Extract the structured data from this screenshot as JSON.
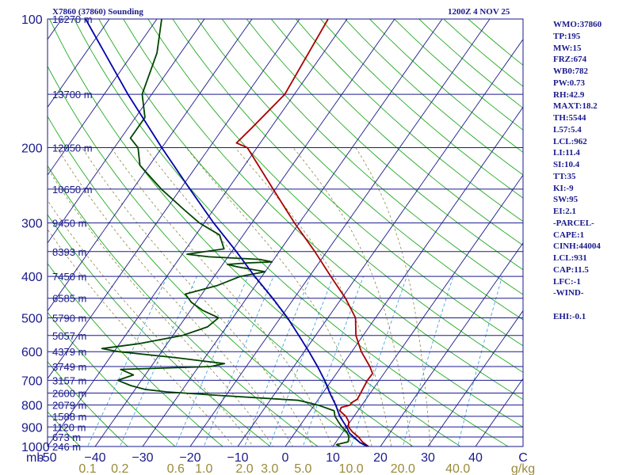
{
  "header": {
    "station_title": "X7860 (37860) Sounding",
    "valid_time": "1200Z  4 NOV 25"
  },
  "stats": [
    "WMO:37860",
    "TP:195",
    "MW:15",
    "FRZ:674",
    "WB0:782",
    "PW:0.73",
    "RH:42.9",
    "MAXT:18.2",
    "TH:5544",
    "L57:5.4",
    "LCL:962",
    "LI:11.4",
    "SI:10.4",
    "TT:35",
    "KI:-9",
    "SW:95",
    "EI:2.1",
    "-PARCEL-",
    "CAPE:1",
    "CINH:44004",
    "LCL:931",
    "CAP:11.5",
    "LFC:-1",
    "-WIND-",
    "",
    "EHI:-0.1"
  ],
  "colors": {
    "background": "#ffffff",
    "isobar": "#1a1a8c",
    "isotherm": "#1a1a8c",
    "dry_adiabat": "#22aa22",
    "moist_adiabat": "#8a8a4a",
    "mixing_ratio": "#3399dd",
    "temperature": "#aa0000",
    "dewpoint": "#004400",
    "parcel": "#0000aa",
    "label": "#1a1a8c",
    "mixing_label": "#9a8a3a"
  },
  "chart_data": {
    "type": "line",
    "title": "",
    "xlabel": "",
    "ylabel": "mb",
    "xlim": [
      -50,
      50
    ],
    "ylim": [
      1000,
      100
    ],
    "y_scale": "log",
    "pressure_labels": [
      "100",
      "200",
      "300",
      "400",
      "500",
      "600",
      "700",
      "800",
      "900",
      "1000"
    ],
    "pressure_ticks": [
      100,
      200,
      300,
      400,
      500,
      600,
      700,
      800,
      900,
      1000
    ],
    "temperature_ticks": [
      -50,
      -40,
      -30,
      -20,
      -10,
      0,
      10,
      20,
      30,
      40,
      50
    ],
    "temperature_tick_labels": [
      "-50",
      "−40",
      "−30",
      "−20",
      "−10",
      "0",
      "10",
      "20",
      "30",
      "40",
      "C"
    ],
    "axis_unit_label": "mb",
    "mixing_ratio_labels": [
      "0.1",
      "0.2",
      "0.6",
      "1.0",
      "2.0",
      "3.0",
      "5.0",
      "10.0",
      "20.0",
      "40.0",
      "g/kg"
    ],
    "mixing_ratio_values": [
      0.1,
      0.2,
      0.6,
      1.0,
      2.0,
      3.0,
      5.0,
      10.0,
      20.0,
      40.0
    ],
    "height_labels": [
      {
        "p": 100,
        "text": "16270 m"
      },
      {
        "p": 150,
        "text": "13700 m"
      },
      {
        "p": 200,
        "text": "12050 m"
      },
      {
        "p": 250,
        "text": "10650 m"
      },
      {
        "p": 300,
        "text": "9450 m"
      },
      {
        "p": 350,
        "text": "8393 m"
      },
      {
        "p": 400,
        "text": "7450 m"
      },
      {
        "p": 450,
        "text": "6585 m"
      },
      {
        "p": 500,
        "text": "5790 m"
      },
      {
        "p": 550,
        "text": "5057 m"
      },
      {
        "p": 600,
        "text": "4379 m"
      },
      {
        "p": 650,
        "text": "3749 m"
      },
      {
        "p": 700,
        "text": "3157 m"
      },
      {
        "p": 750,
        "text": "2600 m"
      },
      {
        "p": 800,
        "text": "2079 m"
      },
      {
        "p": 850,
        "text": "1588 m"
      },
      {
        "p": 900,
        "text": "1120 m"
      },
      {
        "p": 950,
        "text": "673 m"
      },
      {
        "p": 1000,
        "text": "246 m"
      }
    ],
    "series": [
      {
        "name": "temperature",
        "points": [
          [
            1013,
            17.5
          ],
          [
            1000,
            17.5
          ],
          [
            975,
            15.5
          ],
          [
            950,
            14.0
          ],
          [
            925,
            12.0
          ],
          [
            900,
            10.4
          ],
          [
            875,
            9.7
          ],
          [
            850,
            8.3
          ],
          [
            825,
            6.2
          ],
          [
            810,
            6.0
          ],
          [
            800,
            7.5
          ],
          [
            790,
            7.5
          ],
          [
            775,
            8.2
          ],
          [
            700,
            7.5
          ],
          [
            675,
            7.6
          ],
          [
            650,
            6.0
          ],
          [
            600,
            2.0
          ],
          [
            550,
            -1.5
          ],
          [
            500,
            -4.2
          ],
          [
            450,
            -9.2
          ],
          [
            400,
            -15.5
          ],
          [
            350,
            -22.5
          ],
          [
            300,
            -31.0
          ],
          [
            250,
            -40.5
          ],
          [
            200,
            -52.0
          ],
          [
            195,
            -55.0
          ],
          [
            180,
            -54.0
          ],
          [
            150,
            -52.0
          ],
          [
            100,
            -54.0
          ]
        ]
      },
      {
        "name": "dewpoint",
        "points": [
          [
            1013,
            12.0
          ],
          [
            1000,
            11.6
          ],
          [
            990,
            10.5
          ],
          [
            975,
            12.5
          ],
          [
            950,
            12.0
          ],
          [
            925,
            10.8
          ],
          [
            900,
            9.0
          ],
          [
            875,
            7.5
          ],
          [
            850,
            6.0
          ],
          [
            825,
            5.0
          ],
          [
            800,
            0.8
          ],
          [
            780,
            -4.0
          ],
          [
            760,
            -21.0
          ],
          [
            745,
            -33.0
          ],
          [
            735,
            -38.0
          ],
          [
            720,
            -41.5
          ],
          [
            700,
            -45.0
          ],
          [
            680,
            -42.5
          ],
          [
            660,
            -46.0
          ],
          [
            650,
            -27.5
          ],
          [
            640,
            -25.0
          ],
          [
            620,
            -36.0
          ],
          [
            600,
            -49.0
          ],
          [
            590,
            -53.0
          ],
          [
            575,
            -46.0
          ],
          [
            550,
            -38.0
          ],
          [
            525,
            -34.0
          ],
          [
            500,
            -33.0
          ],
          [
            480,
            -37.5
          ],
          [
            460,
            -41.0
          ],
          [
            440,
            -43.5
          ],
          [
            420,
            -38.0
          ],
          [
            400,
            -34.5
          ],
          [
            390,
            -30.0
          ],
          [
            380,
            -36.5
          ],
          [
            375,
            -39.0
          ],
          [
            372,
            -35.0
          ],
          [
            370,
            -30.0
          ],
          [
            365,
            -33.0
          ],
          [
            360,
            -44.0
          ],
          [
            355,
            -49.0
          ],
          [
            345,
            -42.0
          ],
          [
            320,
            -45.0
          ],
          [
            300,
            -51.0
          ],
          [
            280,
            -56.0
          ],
          [
            250,
            -64.0
          ],
          [
            220,
            -72.0
          ],
          [
            200,
            -75.0
          ],
          [
            190,
            -78.0
          ],
          [
            170,
            -78.0
          ],
          [
            150,
            -82.0
          ],
          [
            120,
            -85.0
          ],
          [
            100,
            -89.0
          ]
        ]
      },
      {
        "name": "parcel",
        "points": [
          [
            1000,
            17.5
          ],
          [
            980,
            15.2
          ],
          [
            950,
            13.0
          ],
          [
            930,
            11.5
          ],
          [
            900,
            10.0
          ],
          [
            850,
            7.0
          ],
          [
            800,
            4.5
          ],
          [
            750,
            1.5
          ],
          [
            700,
            -1.5
          ],
          [
            650,
            -5.0
          ],
          [
            600,
            -9.0
          ],
          [
            550,
            -13.5
          ],
          [
            500,
            -18.5
          ],
          [
            450,
            -24.5
          ],
          [
            400,
            -31.5
          ],
          [
            350,
            -39.0
          ],
          [
            300,
            -48.0
          ],
          [
            250,
            -58.0
          ],
          [
            200,
            -70.0
          ],
          [
            150,
            -85.0
          ],
          [
            100,
            -105.0
          ]
        ]
      }
    ]
  }
}
